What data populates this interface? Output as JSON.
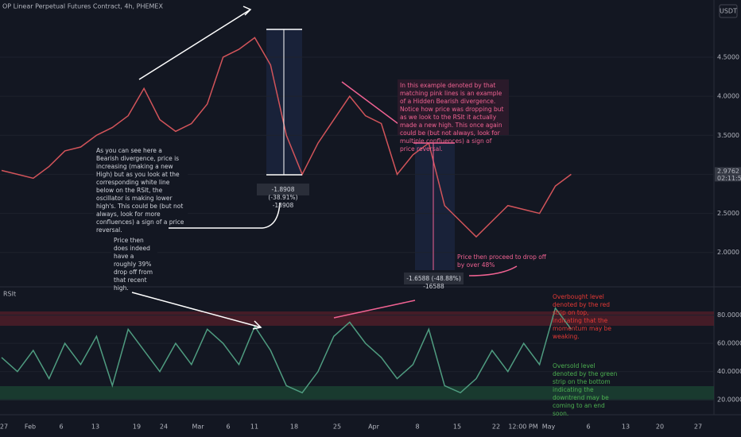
{
  "header": {
    "title": "OP Linear Perpetual Futures Contract, 4h, PHEMEX",
    "currency": "USDT",
    "price_tag": "2.9762",
    "timer": "02:11:59"
  },
  "time_axis": [
    "27",
    "Feb",
    "6",
    "13",
    "19",
    "24",
    "Mar",
    "6",
    "11",
    "18",
    "25",
    "Apr",
    "8",
    "15",
    "22",
    "12:00 PM",
    "May",
    "6",
    "13",
    "20",
    "27"
  ],
  "annotations": [
    "As you can see here a Bearish divergence, price is increasing (making a new High) but as you look at the corresponding white line below on the RSIt, the oscillator is making lower high's. This could be (but not always, look for more confluences) a sign of a price reversal.",
    "Price then does indeed have a roughly 39% drop off from that recent high.",
    "-1.8908 (-38.91%) -18908",
    "In this example denoted by that matching pink lines is an example of a Hidden Bearish divergence. Notice how price was dropping but as we look to the RSIt it actually made a new high. This once again could be (but not always, look for multiple confluences) a sign of price reversal.",
    "Price then proceed to drop off by over 48%",
    "-1.6588 (-48.88%) -16588",
    "Overbought level denoted by the red strip on top, indicating that the momentum may be weaking.",
    "Oversold level denoted by the green strip on the bottom indicating the downtrend may be coming to an end soon."
  ],
  "chart_data": [
    {
      "type": "line",
      "color": "#d2545a",
      "values": [
        3.05,
        3.0,
        2.95,
        3.1,
        3.3,
        3.35,
        3.5,
        3.6,
        3.75,
        4.1,
        3.7,
        3.55,
        3.65,
        3.9,
        4.5,
        4.6,
        4.75,
        4.4,
        3.5,
        3.0,
        3.4,
        3.7,
        4.0,
        3.75,
        3.65,
        3.0,
        3.25,
        3.4,
        2.6,
        2.4,
        2.2,
        2.4,
        2.6,
        2.55,
        2.5,
        2.85,
        3.0
      ],
      "ylim": [
        1.57,
        5.13
      ],
      "yticks": [
        {
          "value": 2,
          "label": "2.0000"
        },
        {
          "value": 2.5,
          "label": "2.5000"
        },
        {
          "value": 3,
          "label": "3.0000"
        },
        {
          "value": 3.5,
          "label": "3.5000"
        },
        {
          "value": 4,
          "label": "4.0000"
        },
        {
          "value": 4.5,
          "label": "4.5000"
        }
      ]
    },
    {
      "type": "line",
      "title": "RSIt",
      "color": "#4f9c80",
      "values": [
        50,
        40,
        55,
        35,
        60,
        45,
        65,
        30,
        70,
        55,
        40,
        60,
        45,
        70,
        60,
        45,
        72,
        55,
        30,
        25,
        40,
        65,
        75,
        60,
        50,
        35,
        45,
        70,
        30,
        25,
        35,
        55,
        40,
        60,
        45,
        85,
        70
      ],
      "ylim": [
        9.4,
        97.8
      ],
      "yticks": [
        {
          "value": 20,
          "label": "20.0000"
        },
        {
          "value": 40,
          "label": "40.0000"
        },
        {
          "value": 60,
          "label": "60.0000"
        },
        {
          "value": 80,
          "label": "80.0000"
        }
      ]
    }
  ]
}
